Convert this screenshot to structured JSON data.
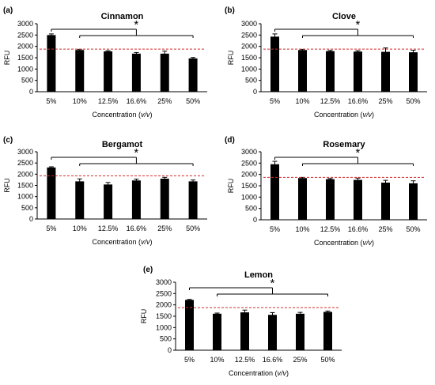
{
  "chart_data": [
    {
      "type": "bar",
      "panel": "(a)",
      "title": "Cinnamon",
      "xlabel_prefix": "Concentration (",
      "xlabel_unit": "v/v",
      "xlabel_suffix": ")",
      "ylabel": "RFU",
      "categories": [
        "5%",
        "10%",
        "12.5%",
        "16.6%",
        "25%",
        "50%"
      ],
      "values": [
        2500,
        1840,
        1780,
        1680,
        1680,
        1470
      ],
      "errors": [
        50,
        30,
        30,
        50,
        110,
        40
      ],
      "ylim": [
        0,
        3000
      ],
      "yticks": [
        0,
        500,
        1000,
        1500,
        2000,
        2500,
        3000
      ],
      "reference_line": 1880,
      "annotation": "*",
      "colors": {
        "bar": "#000000",
        "reference": "#d42a2a"
      }
    },
    {
      "type": "bar",
      "panel": "(b)",
      "title": "Clove",
      "xlabel_prefix": "Concentration (",
      "xlabel_unit": "v/v",
      "xlabel_suffix": ")",
      "ylabel": "RFU",
      "categories": [
        "5%",
        "10%",
        "12.5%",
        "16.6%",
        "25%",
        "50%"
      ],
      "values": [
        2430,
        1840,
        1790,
        1770,
        1760,
        1740
      ],
      "errors": [
        120,
        30,
        30,
        40,
        170,
        90
      ],
      "ylim": [
        0,
        3000
      ],
      "yticks": [
        0,
        500,
        1000,
        1500,
        2000,
        2500,
        3000
      ],
      "reference_line": 1880,
      "annotation": "*",
      "colors": {
        "bar": "#000000",
        "reference": "#d42a2a"
      }
    },
    {
      "type": "bar",
      "panel": "(c)",
      "title": "Bergamot",
      "xlabel_prefix": "Concentration (",
      "xlabel_unit": "v/v",
      "xlabel_suffix": ")",
      "ylabel": "RFU",
      "categories": [
        "5%",
        "10%",
        "12.5%",
        "16.6%",
        "25%",
        "50%"
      ],
      "values": [
        2300,
        1680,
        1540,
        1720,
        1800,
        1680
      ],
      "errors": [
        30,
        110,
        90,
        60,
        60,
        60
      ],
      "ylim": [
        0,
        3000
      ],
      "yticks": [
        0,
        500,
        1000,
        1500,
        2000,
        2500,
        3000
      ],
      "reference_line": 1930,
      "annotation": "*",
      "colors": {
        "bar": "#000000",
        "reference": "#d42a2a"
      }
    },
    {
      "type": "bar",
      "panel": "(d)",
      "title": "Rosemary",
      "xlabel_prefix": "Concentration (",
      "xlabel_unit": "v/v",
      "xlabel_suffix": ")",
      "ylabel": "RFU",
      "categories": [
        "5%",
        "10%",
        "12.5%",
        "16.6%",
        "25%",
        "50%"
      ],
      "values": [
        2450,
        1840,
        1790,
        1760,
        1640,
        1610
      ],
      "errors": [
        130,
        30,
        30,
        80,
        100,
        110
      ],
      "ylim": [
        0,
        3000
      ],
      "yticks": [
        0,
        500,
        1000,
        1500,
        2000,
        2500,
        3000
      ],
      "reference_line": 1870,
      "annotation": "*",
      "colors": {
        "bar": "#000000",
        "reference": "#d42a2a"
      }
    },
    {
      "type": "bar",
      "panel": "(e)",
      "title": "Lemon",
      "xlabel_prefix": "Concentration (",
      "xlabel_unit": "v/v",
      "xlabel_suffix": ")",
      "ylabel": "RFU",
      "categories": [
        "5%",
        "10%",
        "12.5%",
        "16.6%",
        "25%",
        "50%"
      ],
      "values": [
        2220,
        1610,
        1670,
        1560,
        1610,
        1690
      ],
      "errors": [
        20,
        30,
        100,
        100,
        60,
        40
      ],
      "ylim": [
        0,
        3000
      ],
      "yticks": [
        0,
        500,
        1000,
        1500,
        2000,
        2500,
        3000
      ],
      "reference_line": 1880,
      "annotation": "*",
      "colors": {
        "bar": "#000000",
        "reference": "#d42a2a"
      }
    }
  ]
}
